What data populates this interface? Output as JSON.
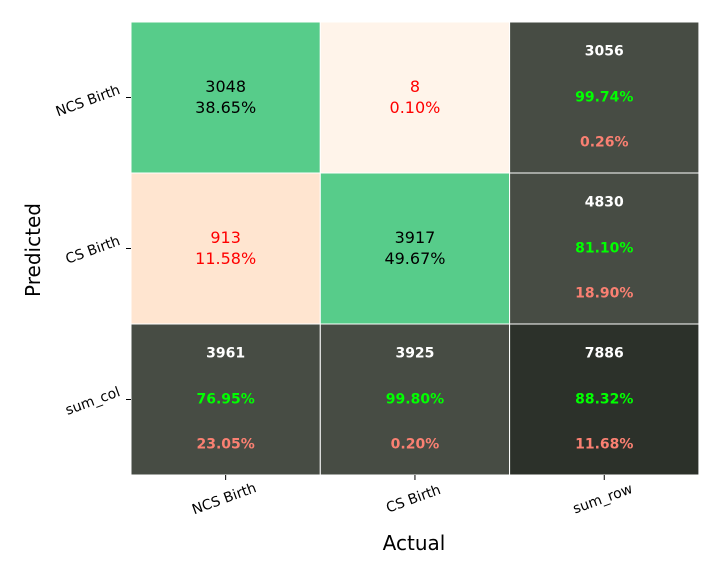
{
  "chart_data": {
    "type": "heatmap",
    "xlabel": "Actual",
    "ylabel": "Predicted",
    "x_ticks": [
      "NCS Birth",
      "CS Birth",
      "sum_row"
    ],
    "y_ticks": [
      "NCS Birth",
      "CS Birth",
      "sum_col"
    ],
    "matrix": [
      [
        3048,
        8
      ],
      [
        913,
        3917
      ]
    ],
    "matrix_percent": [
      [
        "38.65%",
        "0.10%"
      ],
      [
        "11.58%",
        "49.67%"
      ]
    ],
    "row_summary": [
      {
        "total": "3056",
        "correct": "99.74%",
        "error": "0.26%"
      },
      {
        "total": "4830",
        "correct": "81.10%",
        "error": "18.90%"
      }
    ],
    "col_summary": [
      {
        "total": "3961",
        "correct": "76.95%",
        "error": "23.05%"
      },
      {
        "total": "3925",
        "correct": "99.80%",
        "error": "0.20%"
      }
    ],
    "grand_summary": {
      "total": "7886",
      "correct": "88.32%",
      "error": "11.68%"
    }
  },
  "colors": {
    "correct_cell": "#57cc8a",
    "small_error_cell": "#fff4ea",
    "large_error_cell": "#ffe5d0",
    "summary_cell": "#474c44",
    "grand_cell": "#2c312a",
    "diag_text": "#000000",
    "offdiag_text": "#ff0000",
    "summary_total_text": "#ffffff",
    "summary_correct_text": "#00ff00",
    "summary_error_text": "#fa8072"
  }
}
